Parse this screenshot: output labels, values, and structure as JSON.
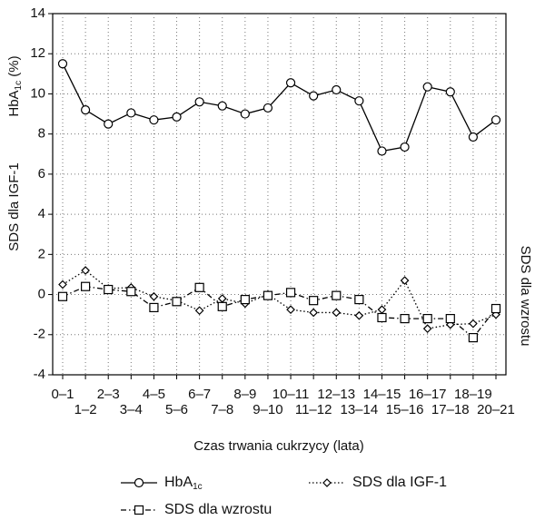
{
  "chart_data": {
    "type": "line",
    "xlabel": "Czas trwania cukrzycy (lata)",
    "ylabel": [
      "HbA",
      "1c",
      " (%)"
    ],
    "ylabel_lower": "SDS dla IGF-1",
    "y2label": "SDS dla wzrostu",
    "categories": [
      "0–1",
      "1–2",
      "2–3",
      "3–4",
      "4–5",
      "5–6",
      "6–7",
      "7–8",
      "8–9",
      "9–10",
      "10–11",
      "11–12",
      "12–13",
      "13–14",
      "14–15",
      "15–16",
      "16–17",
      "17–18",
      "18–19",
      "20–21"
    ],
    "ylim": [
      -4,
      14
    ],
    "yticks": [
      -4,
      -2,
      0,
      2,
      4,
      6,
      8,
      10,
      12,
      14
    ],
    "grid": true,
    "series": [
      {
        "name": [
          "HbA",
          "1c"
        ],
        "color": "#000000",
        "line_style": "solid",
        "marker": "circle",
        "values": [
          11.5,
          9.2,
          8.5,
          9.05,
          8.7,
          8.85,
          9.6,
          9.4,
          9.0,
          9.3,
          10.55,
          9.9,
          10.2,
          9.65,
          7.15,
          7.35,
          10.35,
          10.1,
          7.85,
          8.7
        ]
      },
      {
        "name": "SDS dla IGF-1",
        "color": "#000000",
        "line_style": "dotted",
        "marker": "diamond",
        "values": [
          0.5,
          1.2,
          0.3,
          0.35,
          -0.1,
          -0.3,
          -0.8,
          -0.2,
          -0.45,
          0,
          -0.75,
          -0.9,
          -0.9,
          -1.05,
          -0.75,
          0.7,
          -1.7,
          -1.5,
          -1.45,
          -1.0
        ]
      },
      {
        "name": "SDS dla wzrostu",
        "color": "#000000",
        "line_style": "dashdot",
        "marker": "square",
        "values": [
          -0.1,
          0.4,
          0.25,
          0.15,
          -0.65,
          -0.35,
          0.35,
          -0.6,
          -0.25,
          -0.05,
          0.1,
          -0.3,
          -0.05,
          -0.25,
          -1.15,
          -1.2,
          -1.2,
          -1.2,
          -2.15,
          -0.7
        ]
      }
    ]
  }
}
